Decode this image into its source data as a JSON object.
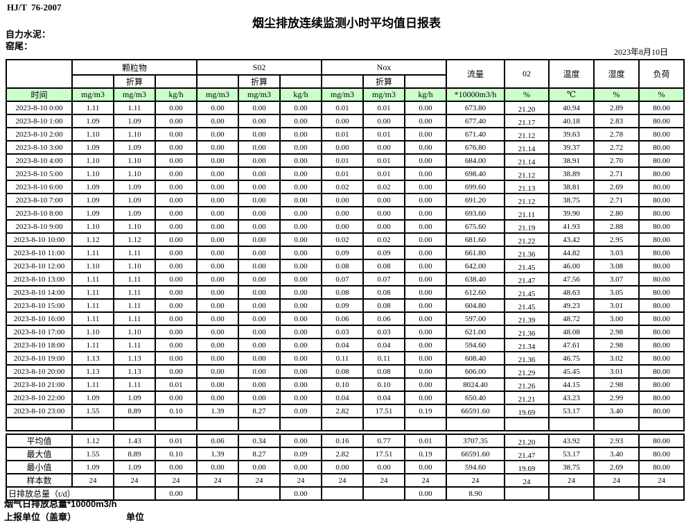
{
  "page": {
    "standard": "HJ/T  76-2007",
    "title": "烟尘排放连续监测小时平均值日报表",
    "company": "自力水泥：",
    "location": "窑尾：",
    "date": "2023年8月10日",
    "accent_color": "#CCFFCC"
  },
  "table": {
    "header": {
      "time": "时间",
      "groups": [
        {
          "name": "颗粒物",
          "sub": "折算"
        },
        {
          "name": "S02",
          "sub": "折算"
        },
        {
          "name": "Nox",
          "sub": "折算"
        }
      ],
      "group_units": [
        "mg/m3",
        "mg/m3",
        "kg/h"
      ],
      "singles": [
        {
          "name": "流量",
          "unit": "*10000m3/h"
        },
        {
          "name": "02",
          "unit": "%"
        },
        {
          "name": "温度",
          "unit": "℃"
        },
        {
          "name": "湿度",
          "unit": "%"
        },
        {
          "name": "负荷",
          "unit": "%"
        }
      ]
    },
    "rows": [
      {
        "time": "2023-8-10 0:00",
        "values": [
          "1.11",
          "1.11",
          "0.00",
          "0.00",
          "0.00",
          "0.00",
          "0.01",
          "0.01",
          "0.00",
          "673.80",
          "21.20",
          "40.94",
          "2.89",
          "80.00"
        ]
      },
      {
        "time": "2023-8-10 1:00",
        "values": [
          "1.09",
          "1.09",
          "0.00",
          "0.00",
          "0.00",
          "0.00",
          "0.00",
          "0.00",
          "0.00",
          "677.40",
          "21.17",
          "40.18",
          "2.83",
          "80.00"
        ]
      },
      {
        "time": "2023-8-10 2:00",
        "values": [
          "1.10",
          "1.10",
          "0.00",
          "0.00",
          "0.00",
          "0.00",
          "0.01",
          "0.01",
          "0.00",
          "671.40",
          "21.12",
          "39.63",
          "2.78",
          "80.00"
        ]
      },
      {
        "time": "2023-8-10 3:00",
        "values": [
          "1.09",
          "1.09",
          "0.00",
          "0.00",
          "0.00",
          "0.00",
          "0.00",
          "0.00",
          "0.00",
          "676.80",
          "21.14",
          "39.37",
          "2.72",
          "80.00"
        ]
      },
      {
        "time": "2023-8-10 4:00",
        "values": [
          "1.10",
          "1.10",
          "0.00",
          "0.00",
          "0.00",
          "0.00",
          "0.01",
          "0.01",
          "0.00",
          "684.00",
          "21.14",
          "38.91",
          "2.70",
          "80.00"
        ]
      },
      {
        "time": "2023-8-10 5:00",
        "values": [
          "1.10",
          "1.10",
          "0.00",
          "0.00",
          "0.00",
          "0.00",
          "0.01",
          "0.01",
          "0.00",
          "698.40",
          "21.12",
          "38.89",
          "2.71",
          "80.00"
        ]
      },
      {
        "time": "2023-8-10 6:00",
        "values": [
          "1.09",
          "1.09",
          "0.00",
          "0.00",
          "0.00",
          "0.00",
          "0.02",
          "0.02",
          "0.00",
          "699.60",
          "21.13",
          "38.81",
          "2.69",
          "80.00"
        ]
      },
      {
        "time": "2023-8-10 7:00",
        "values": [
          "1.09",
          "1.09",
          "0.00",
          "0.00",
          "0.00",
          "0.00",
          "0.00",
          "0.00",
          "0.00",
          "691.20",
          "21.12",
          "38.75",
          "2.71",
          "80.00"
        ]
      },
      {
        "time": "2023-8-10 8:00",
        "values": [
          "1.09",
          "1.09",
          "0.00",
          "0.00",
          "0.00",
          "0.00",
          "0.00",
          "0.00",
          "0.00",
          "693.60",
          "21.11",
          "39.90",
          "2.80",
          "80.00"
        ]
      },
      {
        "time": "2023-8-10 9:00",
        "values": [
          "1.10",
          "1.10",
          "0.00",
          "0.00",
          "0.00",
          "0.00",
          "0.00",
          "0.00",
          "0.00",
          "675.60",
          "21.19",
          "41.93",
          "2.88",
          "80.00"
        ]
      },
      {
        "time": "2023-8-10 10:00",
        "values": [
          "1.12",
          "1.12",
          "0.00",
          "0.00",
          "0.00",
          "0.00",
          "0.02",
          "0.02",
          "0.00",
          "681.60",
          "21.22",
          "43.42",
          "2.95",
          "80.00"
        ]
      },
      {
        "time": "2023-8-10 11:00",
        "values": [
          "1.11",
          "1.11",
          "0.00",
          "0.00",
          "0.00",
          "0.00",
          "0.09",
          "0.09",
          "0.00",
          "661.80",
          "21.36",
          "44.82",
          "3.03",
          "80.00"
        ]
      },
      {
        "time": "2023-8-10 12:00",
        "values": [
          "1.10",
          "1.10",
          "0.00",
          "0.00",
          "0.00",
          "0.00",
          "0.08",
          "0.08",
          "0.00",
          "642.00",
          "21.45",
          "46.00",
          "3.08",
          "80.00"
        ]
      },
      {
        "time": "2023-8-10 13:00",
        "values": [
          "1.11",
          "1.11",
          "0.00",
          "0.00",
          "0.00",
          "0.00",
          "0.07",
          "0.07",
          "0.00",
          "638.40",
          "21.47",
          "47.56",
          "3.07",
          "80.00"
        ]
      },
      {
        "time": "2023-8-10 14:00",
        "values": [
          "1.11",
          "1.11",
          "0.00",
          "0.00",
          "0.00",
          "0.00",
          "0.08",
          "0.08",
          "0.00",
          "612.60",
          "21.45",
          "48.63",
          "3.05",
          "80.00"
        ]
      },
      {
        "time": "2023-8-10 15:00",
        "values": [
          "1.11",
          "1.11",
          "0.00",
          "0.00",
          "0.00",
          "0.00",
          "0.09",
          "0.08",
          "0.00",
          "604.80",
          "21.45",
          "49.23",
          "3.01",
          "80.00"
        ]
      },
      {
        "time": "2023-8-10 16:00",
        "values": [
          "1.11",
          "1.11",
          "0.00",
          "0.00",
          "0.00",
          "0.00",
          "0.06",
          "0.06",
          "0.00",
          "597.00",
          "21.39",
          "48.72",
          "3.00",
          "80.00"
        ]
      },
      {
        "time": "2023-8-10 17:00",
        "values": [
          "1.10",
          "1.10",
          "0.00",
          "0.00",
          "0.00",
          "0.00",
          "0.03",
          "0.03",
          "0.00",
          "621.00",
          "21.36",
          "48.08",
          "2.98",
          "80.00"
        ]
      },
      {
        "time": "2023-8-10 18:00",
        "values": [
          "1.11",
          "1.11",
          "0.00",
          "0.00",
          "0.00",
          "0.00",
          "0.04",
          "0.04",
          "0.00",
          "594.60",
          "21.34",
          "47.61",
          "2.98",
          "80.00"
        ]
      },
      {
        "time": "2023-8-10 19:00",
        "values": [
          "1.13",
          "1.13",
          "0.00",
          "0.00",
          "0.00",
          "0.00",
          "0.11",
          "0.11",
          "0.00",
          "608.40",
          "21.36",
          "46.75",
          "3.02",
          "80.00"
        ]
      },
      {
        "time": "2023-8-10 20:00",
        "values": [
          "1.13",
          "1.13",
          "0.00",
          "0.00",
          "0.00",
          "0.00",
          "0.08",
          "0.08",
          "0.00",
          "606.00",
          "21.29",
          "45.45",
          "3.01",
          "80.00"
        ]
      },
      {
        "time": "2023-8-10 21:00",
        "values": [
          "1.11",
          "1.11",
          "0.01",
          "0.00",
          "0.00",
          "0.00",
          "0.10",
          "0.10",
          "0.00",
          "8024.40",
          "21.26",
          "44.15",
          "2.98",
          "80.00"
        ]
      },
      {
        "time": "2023-8-10 22:00",
        "values": [
          "1.09",
          "1.09",
          "0.00",
          "0.00",
          "0.00",
          "0.00",
          "0.04",
          "0.04",
          "0.00",
          "650.40",
          "21.21",
          "43.23",
          "2.99",
          "80.00"
        ]
      },
      {
        "time": "2023-8-10 23:00",
        "values": [
          "1.55",
          "8.89",
          "0.10",
          "1.39",
          "8.27",
          "0.09",
          "2.82",
          "17.51",
          "0.19",
          "66591.60",
          "19.69",
          "53.17",
          "3.40",
          "80.00"
        ]
      }
    ],
    "summary_rows": [
      {
        "label": "平均值",
        "values": [
          "1.12",
          "1.43",
          "0.01",
          "0.06",
          "0.34",
          "0.00",
          "0.16",
          "0.77",
          "0.01",
          "3707.35",
          "21.20",
          "43.92",
          "2.93",
          "80.00"
        ]
      },
      {
        "label": "最大值",
        "values": [
          "1.55",
          "8.89",
          "0.10",
          "1.39",
          "8.27",
          "0.09",
          "2.82",
          "17.51",
          "0.19",
          "66591.60",
          "21.47",
          "53.17",
          "3.40",
          "80.00"
        ]
      },
      {
        "label": "最小值",
        "values": [
          "1.09",
          "1.09",
          "0.00",
          "0.00",
          "0.00",
          "0.00",
          "0.00",
          "0.00",
          "0.00",
          "594.60",
          "19.69",
          "38.75",
          "2.69",
          "80.00"
        ]
      },
      {
        "label": "样本数",
        "values": [
          "24",
          "24",
          "24",
          "24",
          "24",
          "24",
          "24",
          "24",
          "24",
          "24",
          "24",
          "24",
          "24",
          "24"
        ]
      }
    ],
    "total_row": {
      "label": "日排放总量（t/d）",
      "values": [
        "",
        "0.00",
        "",
        "",
        "0.00",
        "",
        "",
        "0.00",
        "8.90",
        "",
        "",
        "",
        ""
      ]
    }
  },
  "footer": {
    "flue_total": "烟气日排放总量*10000m3/h",
    "report_unit": "上报单位（盖章）",
    "unit": "单位"
  }
}
